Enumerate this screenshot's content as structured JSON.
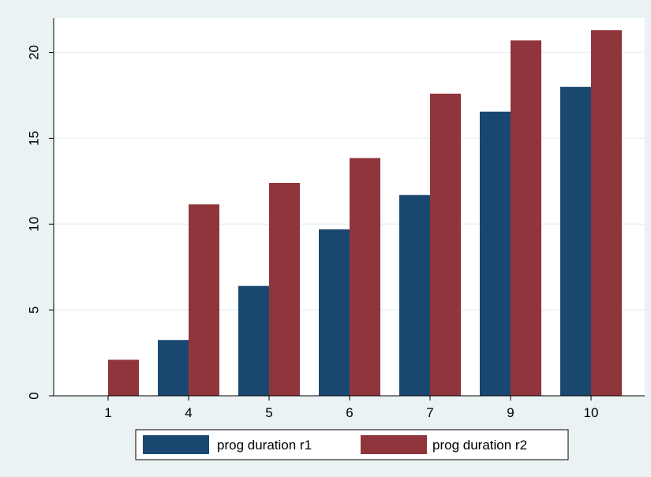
{
  "chart_data": {
    "type": "bar",
    "categories": [
      "1",
      "4",
      "5",
      "6",
      "7",
      "9",
      "10"
    ],
    "series": [
      {
        "name": "prog duration r1",
        "color": "#1a476f",
        "values": [
          0,
          3.25,
          6.4,
          9.7,
          11.7,
          16.55,
          18.0
        ]
      },
      {
        "name": "prog duration r2",
        "color": "#90353b",
        "values": [
          2.1,
          11.15,
          12.4,
          13.85,
          17.6,
          20.7,
          21.3
        ]
      }
    ],
    "title": "",
    "xlabel": "",
    "ylabel": "",
    "ylim": [
      0,
      22
    ],
    "yticks": [
      0,
      5,
      10,
      15,
      20
    ],
    "ytick_labels": [
      "0",
      "5",
      "10",
      "15",
      "20"
    ],
    "grid": true,
    "legend_position": "bottom",
    "colors": {
      "background": "#eaf2f3",
      "plot_area": "#ffffff",
      "gridline": "#eaf2f3"
    }
  }
}
